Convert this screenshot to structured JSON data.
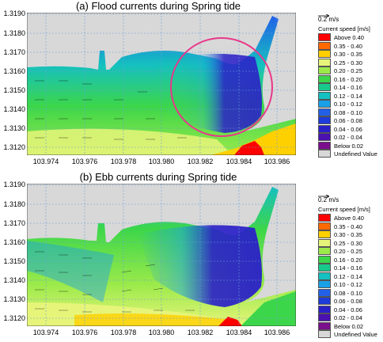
{
  "chart_data": [
    {
      "type": "heatmap",
      "title": "(a) Flood currents during Spring tide",
      "x_ticks": [
        "103.974",
        "103.976",
        "103.978",
        "103.980",
        "103.982",
        "103.984",
        "103.986"
      ],
      "y_ticks": [
        "1.3190",
        "1.3180",
        "1.3170",
        "1.3160",
        "1.3150",
        "1.3140",
        "1.3130",
        "1.3120"
      ],
      "xlim": [
        103.973,
        103.987
      ],
      "ylim": [
        1.3115,
        1.319
      ],
      "grid": true,
      "legend": {
        "position": "right",
        "scale_label": "0.2 m/s",
        "unit_label": "Current speed [m/s]",
        "entries": [
          {
            "label": "Above 0.40",
            "color": "#ff0000"
          },
          {
            "label": "0.35 - 0.40",
            "color": "#ff6a00"
          },
          {
            "label": "0.30 - 0.35",
            "color": "#ffd000"
          },
          {
            "label": "0.25 - 0.30",
            "color": "#e6f57a"
          },
          {
            "label": "0.20 - 0.25",
            "color": "#9bea4a"
          },
          {
            "label": "0.16 - 0.20",
            "color": "#3cd64a"
          },
          {
            "label": "0.14 - 0.16",
            "color": "#17c98a"
          },
          {
            "label": "0.12 - 0.14",
            "color": "#14c0c0"
          },
          {
            "label": "0.10 - 0.12",
            "color": "#1aa0e6"
          },
          {
            "label": "0.08 - 0.10",
            "color": "#2260e8"
          },
          {
            "label": "0.06 - 0.08",
            "color": "#1e3cd8"
          },
          {
            "label": "0.04 - 0.06",
            "color": "#2a20c8"
          },
          {
            "label": "0.02 - 0.04",
            "color": "#4a10b0"
          },
          {
            "label": "Below 0.02",
            "color": "#7a0e8c"
          },
          {
            "label": "Undefined Value",
            "color": "#d8d8d8"
          }
        ]
      },
      "annotation": "circle highlighting low-speed eddy region"
    },
    {
      "type": "heatmap",
      "title": "(b) Ebb currents during Spring tide",
      "x_ticks": [
        "103.974",
        "103.976",
        "103.978",
        "103.980",
        "103.982",
        "103.984",
        "103.986"
      ],
      "y_ticks": [
        "1.3190",
        "1.3180",
        "1.3170",
        "1.3160",
        "1.3150",
        "1.3140",
        "1.3130",
        "1.3120"
      ],
      "xlim": [
        103.973,
        103.987
      ],
      "ylim": [
        1.3115,
        1.319
      ],
      "grid": true,
      "legend": {
        "position": "right",
        "scale_label": "0.2 m/s",
        "unit_label": "Current speed [m/s]",
        "entries": [
          {
            "label": "Above 0.40",
            "color": "#ff0000"
          },
          {
            "label": "0.35 - 0.40",
            "color": "#ff6a00"
          },
          {
            "label": "0.30 - 0.35",
            "color": "#ffd000"
          },
          {
            "label": "0.25 - 0.30",
            "color": "#e6f57a"
          },
          {
            "label": "0.20 - 0.25",
            "color": "#9bea4a"
          },
          {
            "label": "0.16 - 0.20",
            "color": "#3cd64a"
          },
          {
            "label": "0.14 - 0.16",
            "color": "#17c98a"
          },
          {
            "label": "0.12 - 0.14",
            "color": "#14c0c0"
          },
          {
            "label": "0.10 - 0.12",
            "color": "#1aa0e6"
          },
          {
            "label": "0.08 - 0.10",
            "color": "#2260e8"
          },
          {
            "label": "0.06 - 0.08",
            "color": "#1e3cd8"
          },
          {
            "label": "0.04 - 0.06",
            "color": "#2a20c8"
          },
          {
            "label": "0.02 - 0.04",
            "color": "#4a10b0"
          },
          {
            "label": "Below 0.02",
            "color": "#7a0e8c"
          },
          {
            "label": "Undefined Value",
            "color": "#d8d8d8"
          }
        ]
      }
    }
  ]
}
